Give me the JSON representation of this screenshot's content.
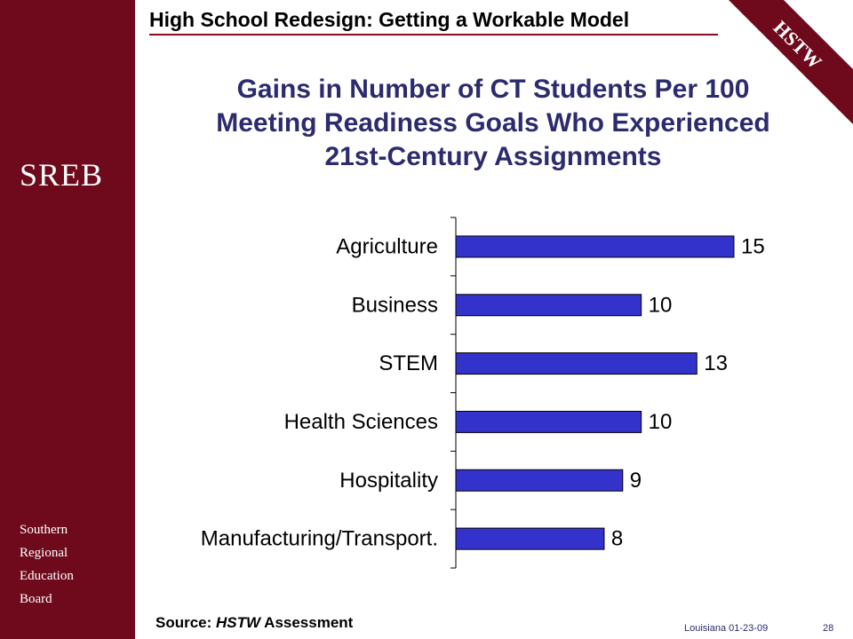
{
  "header": {
    "title": "High School Redesign: Getting a Workable Model",
    "corner_badge": "HSTW"
  },
  "sidebar": {
    "logo": "SREB",
    "org_lines": [
      "Southern",
      "Regional",
      "Education",
      "Board"
    ]
  },
  "slide": {
    "title_lines": [
      "Gains in Number of CT Students Per 100",
      "Meeting Readiness Goals Who Experienced",
      "21st-Century Assignments"
    ]
  },
  "source": {
    "prefix": "Source: ",
    "italic": "HSTW",
    "suffix": " Assessment"
  },
  "footer": {
    "date": "Louisiana 01-23-09",
    "page": "28"
  },
  "colors": {
    "sidebar": "#6e0a1c",
    "bar": "#3333cc",
    "title": "#2b2b6e",
    "rule": "#8b0a1e"
  },
  "chart_data": {
    "type": "bar",
    "orientation": "horizontal",
    "categories": [
      "Agriculture",
      "Business",
      "STEM",
      "Health Sciences",
      "Hospitality",
      "Manufacturing/Transport."
    ],
    "values": [
      15,
      10,
      13,
      10,
      9,
      8
    ],
    "data_labels": true
  }
}
